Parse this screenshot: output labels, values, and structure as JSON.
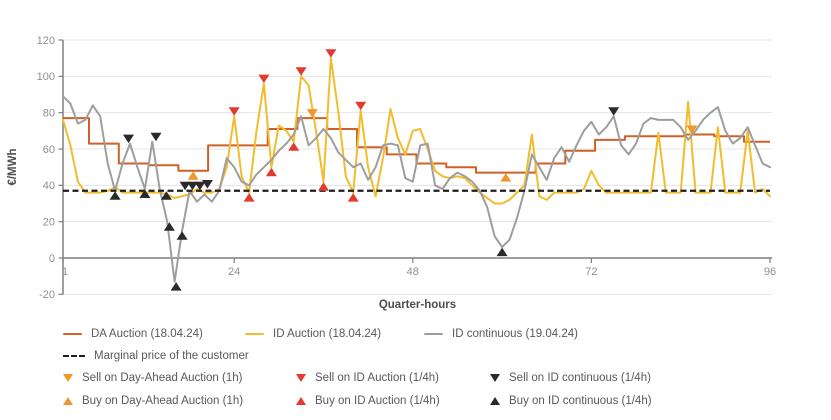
{
  "colors": {
    "da_line": "#cf6028",
    "id_line": "#f2bd2d",
    "idc_line": "#9e9e9e",
    "marginal": "#1f1f1f",
    "marker_da": "#f0962a",
    "marker_ida": "#e23a2e",
    "marker_idc": "#2a2a2a",
    "grid": "#e4e4e4",
    "axis": "#808080",
    "axis_title": "#4d4d4d",
    "tick_text": "#8f8f8f"
  },
  "chart_data": {
    "type": "line",
    "title": "",
    "xlabel": "Quarter-hours",
    "ylabel": "€/MWh",
    "x_ticks": [
      1,
      24,
      48,
      72,
      96
    ],
    "y_ticks": [
      -20,
      0,
      20,
      40,
      60,
      80,
      100,
      120
    ],
    "xlim": [
      1,
      96
    ],
    "ylim": [
      -20,
      120
    ],
    "grid": true,
    "marginal_price": 37,
    "series": [
      {
        "name": "DA Auction (18.04.24)",
        "kind": "step-hourly",
        "color_key": "da_line",
        "hourly_values": [
          77,
          63,
          52,
          51,
          48,
          62,
          62,
          71,
          77,
          71,
          61,
          57,
          52,
          50,
          47,
          47,
          52,
          59,
          65,
          67,
          67,
          68,
          67,
          64
        ]
      },
      {
        "name": "ID Auction (18.04.24)",
        "kind": "line",
        "color_key": "id_line",
        "values": [
          76,
          62,
          42,
          36,
          36,
          36,
          37,
          39,
          36,
          36,
          36,
          36,
          36,
          36,
          35,
          33,
          34,
          35,
          38,
          36,
          36,
          38,
          50,
          78,
          45,
          36,
          70,
          96,
          50,
          73,
          70,
          64,
          100,
          95,
          70,
          42,
          110,
          80,
          45,
          36,
          81,
          50,
          34,
          55,
          82,
          66,
          57,
          70,
          71,
          60,
          48,
          45,
          44,
          45,
          44,
          40,
          36,
          33,
          30,
          30,
          32,
          36,
          40,
          68,
          34,
          32,
          36,
          36,
          36,
          36,
          38,
          48,
          40,
          36,
          36,
          36,
          36,
          36,
          36,
          36,
          69,
          36,
          36,
          36,
          86,
          36,
          36,
          36,
          72,
          36,
          36,
          36,
          70,
          36,
          38,
          34
        ]
      },
      {
        "name": "ID continuous (19.04.24)",
        "kind": "line",
        "color_key": "idc_line",
        "values": [
          89,
          85,
          74,
          76,
          84,
          78,
          52,
          37,
          52,
          63,
          50,
          38,
          64,
          38,
          20,
          -13,
          15,
          37,
          31,
          35,
          31,
          37,
          55,
          50,
          42,
          40,
          46,
          50,
          54,
          59,
          63,
          68,
          78,
          62,
          66,
          71,
          66,
          58,
          54,
          50,
          52,
          43,
          50,
          62,
          63,
          62,
          44,
          42,
          62,
          63,
          40,
          38,
          44,
          47,
          45,
          42,
          37,
          28,
          12,
          6,
          10,
          22,
          37,
          57,
          50,
          43,
          55,
          61,
          53,
          62,
          70,
          75,
          68,
          72,
          78,
          62,
          57,
          63,
          74,
          77,
          76,
          76,
          76,
          72,
          65,
          70,
          76,
          80,
          83,
          70,
          63,
          66,
          72,
          62,
          52,
          50
        ]
      },
      {
        "name": "Marginal price of the customer",
        "kind": "hline",
        "color_key": "marginal",
        "value": 37,
        "dashed": true
      }
    ],
    "markers": [
      {
        "name": "Sell on Day-Ahead Auction (1h)",
        "shape": "triangle-down",
        "color_key": "marker_da",
        "points": [
          {
            "x": 34.5,
            "y": 77
          },
          {
            "x": 85.5,
            "y": 68
          }
        ]
      },
      {
        "name": "Buy on Day-Ahead Auction (1h)",
        "shape": "triangle-up",
        "color_key": "marker_da",
        "points": [
          {
            "x": 18.5,
            "y": 48
          },
          {
            "x": 60.5,
            "y": 47
          }
        ]
      },
      {
        "name": "Sell on ID Auction (1/4h)",
        "shape": "triangle-down",
        "color_key": "marker_ida",
        "points": [
          {
            "x": 24,
            "y": 78
          },
          {
            "x": 28,
            "y": 96
          },
          {
            "x": 33,
            "y": 100
          },
          {
            "x": 37,
            "y": 110
          },
          {
            "x": 41,
            "y": 81
          }
        ]
      },
      {
        "name": "Buy on ID Auction (1/4h)",
        "shape": "triangle-up",
        "color_key": "marker_ida",
        "points": [
          {
            "x": 26,
            "y": 36
          },
          {
            "x": 29,
            "y": 50
          },
          {
            "x": 32,
            "y": 64
          },
          {
            "x": 36,
            "y": 42
          },
          {
            "x": 40,
            "y": 36
          }
        ]
      },
      {
        "name": "Sell on ID continuous (1/4h)",
        "shape": "triangle-down",
        "color_key": "marker_idc",
        "points": [
          {
            "x": 9.8,
            "y": 63
          },
          {
            "x": 13.5,
            "y": 64
          },
          {
            "x": 17.4,
            "y": 37
          },
          {
            "x": 18.4,
            "y": 37
          },
          {
            "x": 19.4,
            "y": 37
          },
          {
            "x": 20.4,
            "y": 38
          },
          {
            "x": 75,
            "y": 78
          }
        ]
      },
      {
        "name": "Buy on ID continuous (1/4h)",
        "shape": "triangle-up",
        "color_key": "marker_idc",
        "points": [
          {
            "x": 8,
            "y": 37
          },
          {
            "x": 12,
            "y": 38
          },
          {
            "x": 14.9,
            "y": 37
          },
          {
            "x": 15.3,
            "y": 20
          },
          {
            "x": 16.2,
            "y": -13
          },
          {
            "x": 17,
            "y": 15
          },
          {
            "x": 60,
            "y": 6
          }
        ]
      }
    ]
  },
  "axes": {
    "y_label": "€/MWh",
    "x_label": "Quarter-hours"
  },
  "legend": {
    "da_auction": "DA Auction (18.04.24)",
    "id_auction": "ID Auction (18.04.24)",
    "id_continuous": "ID continuous (19.04.24)",
    "marginal": "Marginal price of the customer",
    "sell_da": "Sell on Day-Ahead Auction (1h)",
    "sell_ida": "Sell on ID Auction (1/4h)",
    "sell_idc": "Sell on ID continuous (1/4h)",
    "buy_da": "Buy on Day-Ahead Auction (1h)",
    "buy_ida": "Buy on ID Auction (1/4h)",
    "buy_idc": "Buy on ID continuous (1/4h)"
  }
}
